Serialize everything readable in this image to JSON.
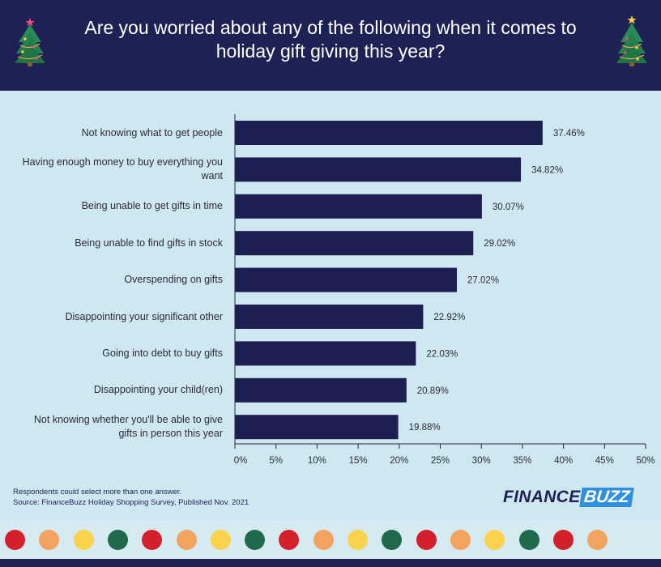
{
  "header": {
    "title_line1": "Are you worried about any of the following when it comes to",
    "title_line2": "holiday gift giving this year?",
    "colors": {
      "background": "#1d2153",
      "title": "#ffffff"
    },
    "icons": [
      "christmas-tree-icon",
      "christmas-tree-icon"
    ]
  },
  "chart_data": {
    "type": "bar",
    "orientation": "horizontal",
    "categories": [
      "Not knowing what to get people",
      "Having enough money to buy everything you want",
      "Being unable to get gifts in time",
      "Being unable to find gifts in stock",
      "Overspending on gifts",
      "Disappointing your significant other",
      "Going into debt to buy gifts",
      "Disappointing your child(ren)",
      "Not knowing whether you'll be able to give gifts in person this year"
    ],
    "category_lines": [
      [
        "Not knowing what to get people"
      ],
      [
        "Having enough money to buy everything you",
        "want"
      ],
      [
        "Being unable to get gifts in time"
      ],
      [
        "Being unable to find gifts in stock"
      ],
      [
        "Overspending on gifts"
      ],
      [
        "Disappointing your significant other"
      ],
      [
        "Going into debt to buy gifts"
      ],
      [
        "Disappointing your child(ren)"
      ],
      [
        "Not knowing whether you'll be able to give",
        "gifts in person this year"
      ]
    ],
    "values": [
      37.46,
      34.82,
      30.07,
      29.02,
      27.02,
      22.92,
      22.03,
      20.89,
      19.88
    ],
    "value_labels": [
      "37.46%",
      "34.82%",
      "30.07%",
      "29.02%",
      "27.02%",
      "22.92%",
      "22.03%",
      "20.89%",
      "19.88%"
    ],
    "xlim": [
      0,
      50
    ],
    "xticks": [
      0,
      5,
      10,
      15,
      20,
      25,
      30,
      35,
      40,
      45,
      50
    ],
    "xtick_labels": [
      "0%",
      "5%",
      "10%",
      "15%",
      "20%",
      "25%",
      "30%",
      "35%",
      "40%",
      "45%",
      "50%"
    ],
    "title": "",
    "xlabel": "",
    "ylabel": "",
    "grid": false,
    "bar_color": "#1d1f52"
  },
  "footnote": {
    "line1": "Respondents could select more than one answer.",
    "line2": "Source: FinanceBuzz Holiday Shopping Survey, Published Nov. 2021"
  },
  "logo": {
    "part1": "FINANCE",
    "part2": "BUZZ",
    "colors": {
      "finance": "#1d2153",
      "buzz_bg": "#2f8fe0"
    }
  },
  "decor": {
    "dot_colors": [
      "#d4202a",
      "#f2a35e",
      "#fbd24b",
      "#1e6a4a",
      "#d4202a",
      "#f2a35e",
      "#fbd24b",
      "#1e6a4a",
      "#d4202a",
      "#f2a35e",
      "#fbd24b",
      "#1e6a4a",
      "#d4202a",
      "#f2a35e",
      "#fbd24b",
      "#1e6a4a",
      "#d4202a",
      "#f2a35e"
    ]
  }
}
